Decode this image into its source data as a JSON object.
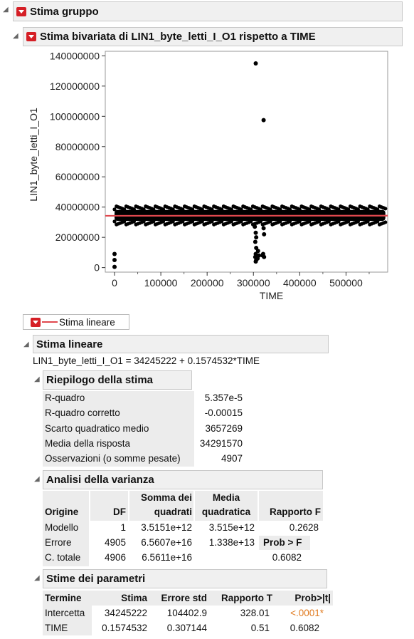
{
  "top_header": {
    "title": "Stima gruppo"
  },
  "bivariate_header": {
    "title": "Stima bivariata di LIN1_byte_letti_I_O1 rispetto a TIME"
  },
  "chart_data": {
    "type": "scatter",
    "xlabel": "TIME",
    "ylabel": "LIN1_byte_letti_I_O1",
    "xlim": [
      -20000,
      590000
    ],
    "ylim": [
      -3000000,
      143000000
    ],
    "x_ticks": [
      0,
      100000,
      200000,
      300000,
      400000,
      500000
    ],
    "y_ticks": [
      0,
      20000000,
      40000000,
      60000000,
      80000000,
      100000000,
      120000000,
      140000000
    ],
    "x_tick_labels": [
      "0",
      "100000",
      "200000",
      "300000",
      "400000",
      "500000"
    ],
    "y_tick_labels": [
      "0",
      "20000000",
      "40000000",
      "60000000",
      "80000000",
      "100000000",
      "120000000",
      "140000000"
    ],
    "band": {
      "x_range": [
        0,
        585000
      ],
      "y_range": [
        29000000,
        40000000
      ],
      "color": "#000000"
    },
    "outliers": [
      {
        "x": 0,
        "y": 9000000
      },
      {
        "x": 0,
        "y": 5000000
      },
      {
        "x": 0,
        "y": 500000
      },
      {
        "x": 305000,
        "y": 135000000
      },
      {
        "x": 322000,
        "y": 97500000
      },
      {
        "x": 303000,
        "y": 27000000
      },
      {
        "x": 305000,
        "y": 23000000
      },
      {
        "x": 306000,
        "y": 20000000
      },
      {
        "x": 304000,
        "y": 17000000
      },
      {
        "x": 306000,
        "y": 13000000
      },
      {
        "x": 305000,
        "y": 9000000
      },
      {
        "x": 304000,
        "y": 7000000
      },
      {
        "x": 306000,
        "y": 5000000
      },
      {
        "x": 305000,
        "y": 4000000
      },
      {
        "x": 310000,
        "y": 11000000
      },
      {
        "x": 312000,
        "y": 8000000
      },
      {
        "x": 309000,
        "y": 6000000
      },
      {
        "x": 322000,
        "y": 26000000
      },
      {
        "x": 323000,
        "y": 22000000
      },
      {
        "x": 321000,
        "y": 9000000
      },
      {
        "x": 323000,
        "y": 7000000
      },
      {
        "x": 320000,
        "y": 8000000
      }
    ],
    "fit_line": {
      "intercept": 34245222,
      "slope": 0.1574532,
      "color": "#e0484e"
    }
  },
  "legend": {
    "label": "Stima lineare"
  },
  "linear_fit": {
    "title": "Stima lineare",
    "equation": "LIN1_byte_letti_I_O1 = 34245222 + 0.1574532*TIME"
  },
  "summary": {
    "title": "Riepilogo della stima",
    "rows": [
      {
        "label": "R-quadro",
        "value": "5.357e-5"
      },
      {
        "label": "R-quadro corretto",
        "value": "-0.00015"
      },
      {
        "label": "Scarto quadratico medio",
        "value": "3657269"
      },
      {
        "label": "Media della risposta",
        "value": "34291570"
      },
      {
        "label": "Osservazioni (o somme pesate)",
        "value": "4907"
      }
    ]
  },
  "anova": {
    "title": "Analisi della varianza",
    "headers": {
      "source": "Origine",
      "df": "DF",
      "ss_1": "Somma dei",
      "ss_2": "quadrati",
      "ms_1": "Media",
      "ms_2": "quadratica",
      "f": "Rapporto F",
      "prob": "Prob > F"
    },
    "rows": [
      {
        "source": "Modello",
        "df": "1",
        "ss": "3.5151e+12",
        "ms": "3.515e+12",
        "f": "0.2628"
      },
      {
        "source": "Errore",
        "df": "4905",
        "ss": "6.5607e+16",
        "ms": "1.338e+13"
      },
      {
        "source": "C. totale",
        "df": "4906",
        "ss": "6.5611e+16",
        "prob": "0.6082"
      }
    ]
  },
  "params": {
    "title": "Stime dei parametri",
    "headers": {
      "term": "Termine",
      "est": "Stima",
      "se": "Errore std",
      "t": "Rapporto T",
      "p": "Prob>|t|"
    },
    "rows": [
      {
        "term": "Intercetta",
        "est": "34245222",
        "se": "104402.9",
        "t": "328.01",
        "p": "<.0001*"
      },
      {
        "term": "TIME",
        "est": "0.1574532",
        "se": "0.307144",
        "t": "0.51",
        "p": "0.6082"
      }
    ],
    "sig_color": "#e07a1f"
  }
}
